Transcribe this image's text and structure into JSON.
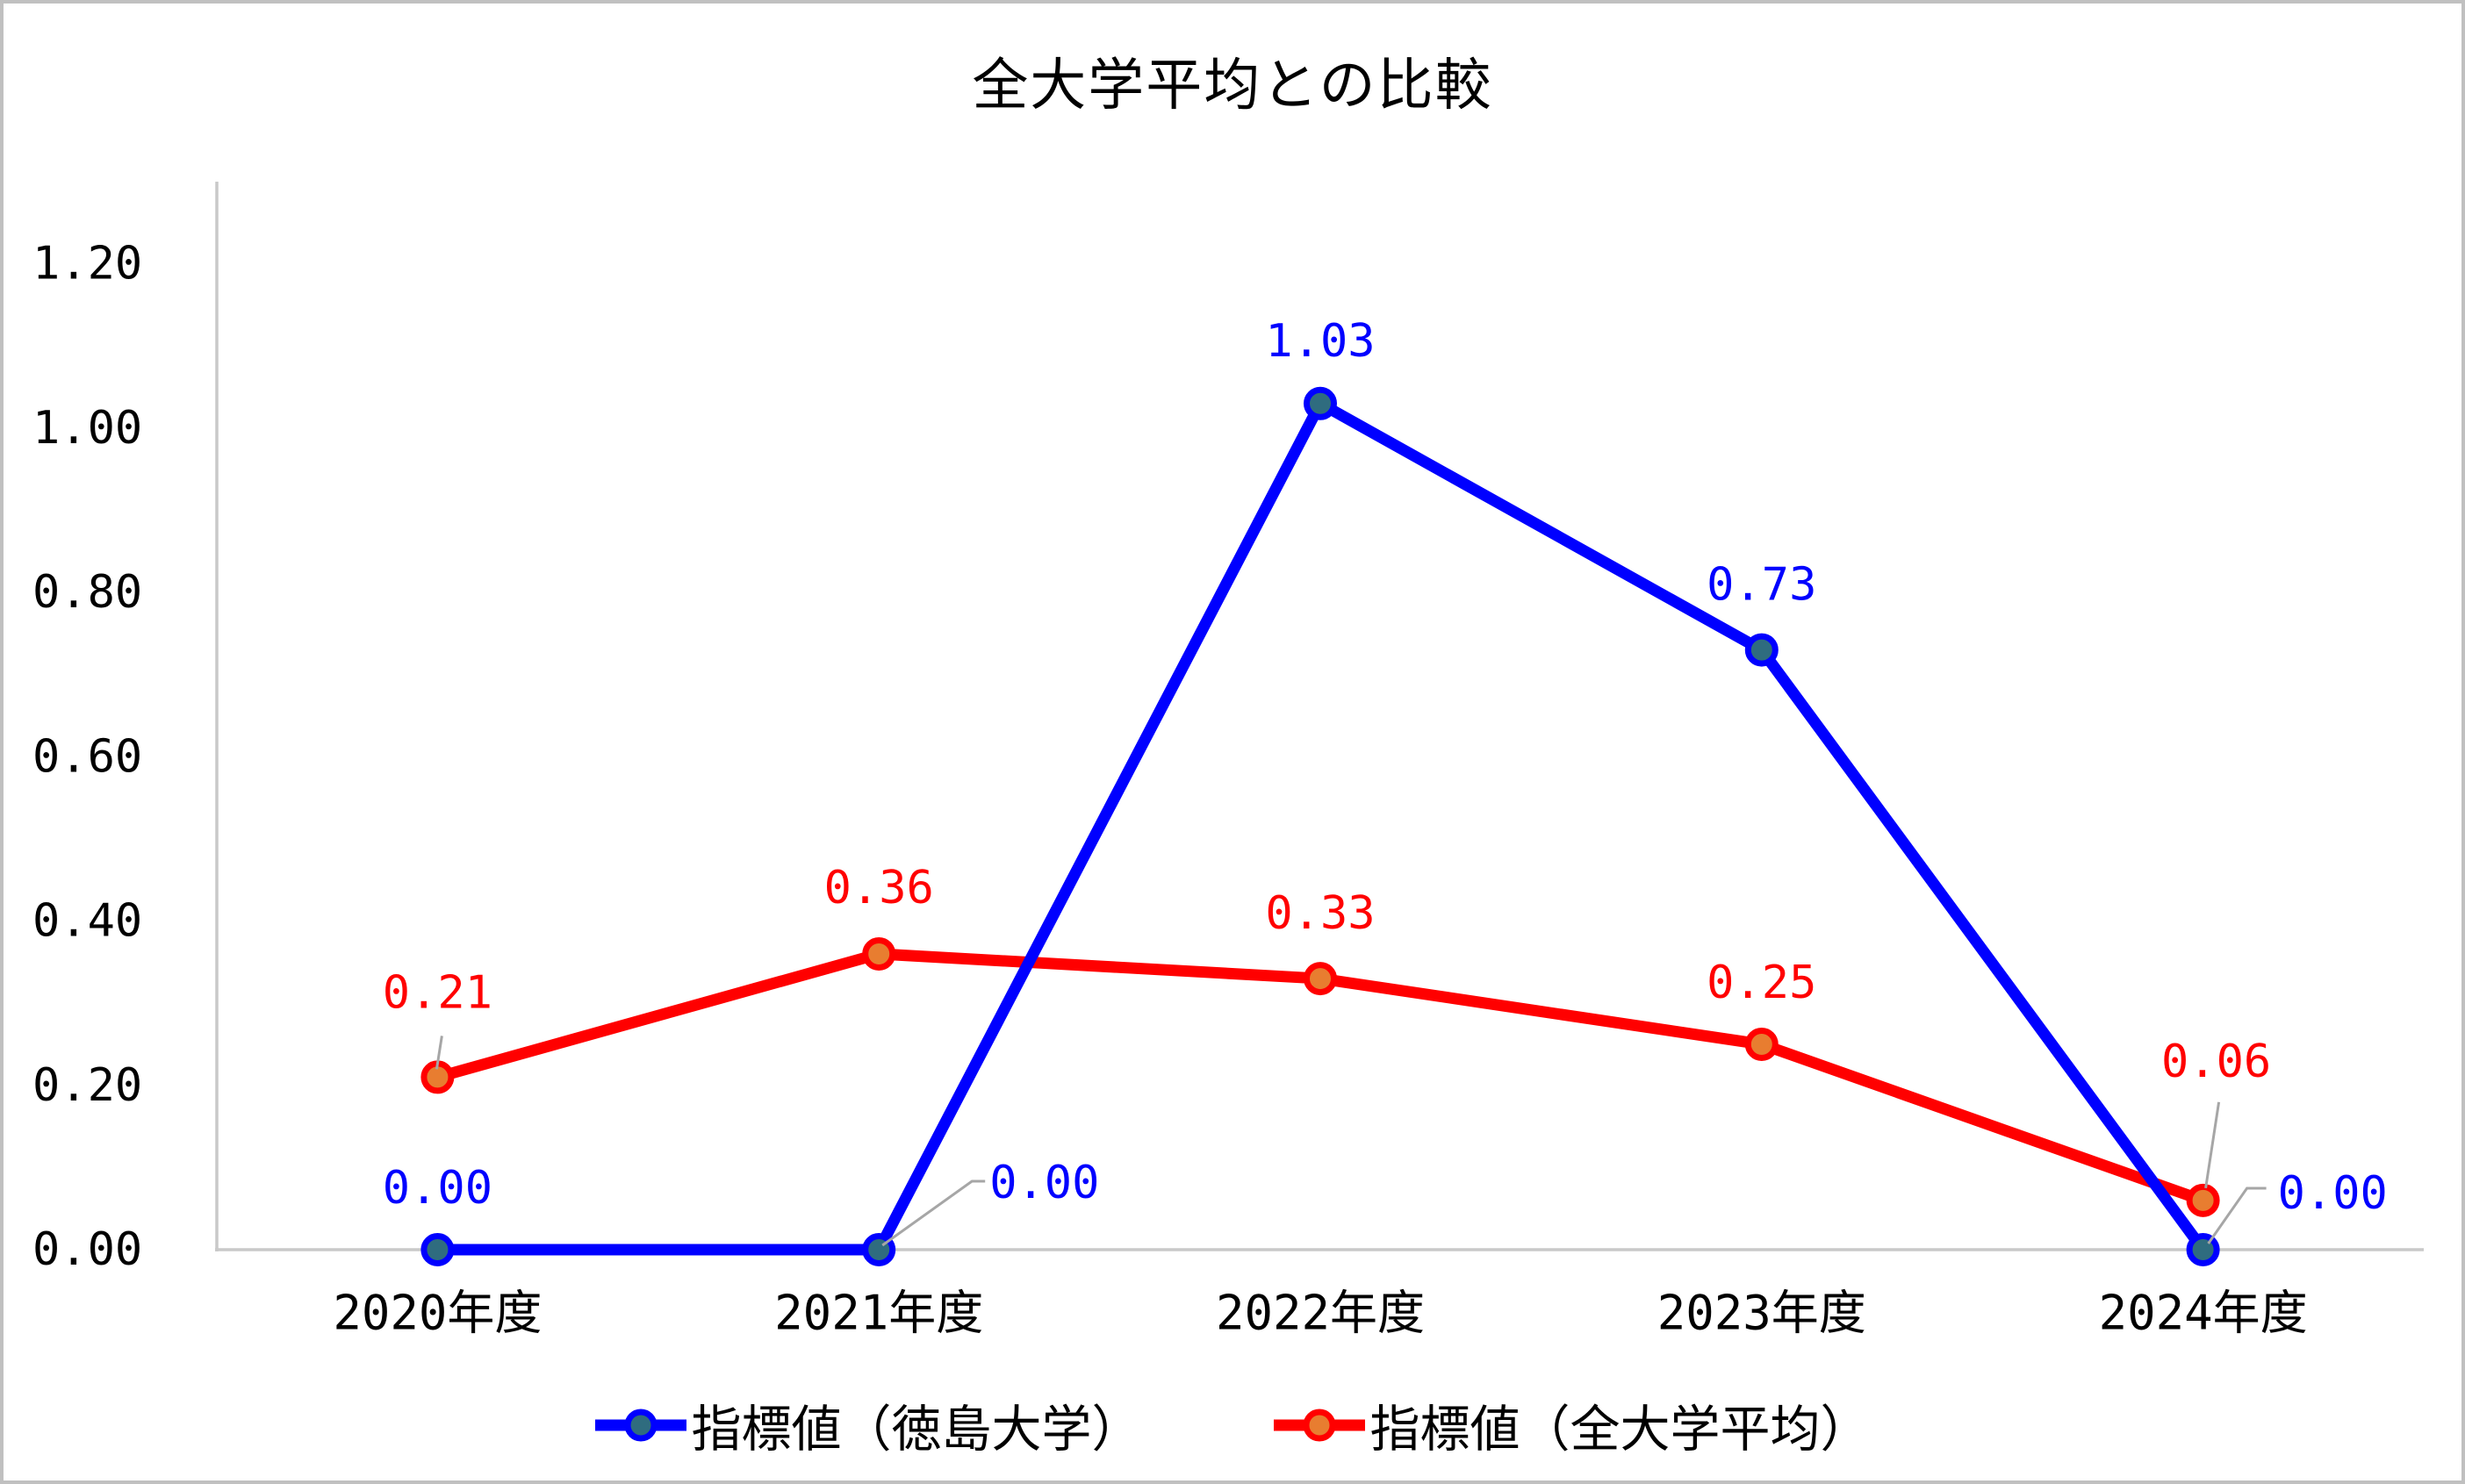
{
  "colors": {
    "tokushima_line": "#0000FF",
    "tokushima_marker_fill": "#2F6C7F",
    "average_line": "#FF0000",
    "average_marker_fill": "#E87D30",
    "axis_line": "#C9C9C9",
    "leader_line": "#A6A6A6",
    "frame_border": "#C0C0C0",
    "text": "#000000"
  },
  "chart_data": {
    "type": "line",
    "title": "全大学平均との比較",
    "categories": [
      "2020年度",
      "2021年度",
      "2022年度",
      "2023年度",
      "2024年度"
    ],
    "series": [
      {
        "name": "指標値（徳島大学）",
        "values": [
          0.0,
          0.0,
          1.03,
          0.73,
          0.0
        ],
        "labels": [
          "0.00",
          "0.00",
          "1.03",
          "0.73",
          "0.00"
        ],
        "line_color": "#0000FF",
        "marker_fill": "#2F6C7F"
      },
      {
        "name": "指標値（全大学平均）",
        "values": [
          0.21,
          0.36,
          0.33,
          0.25,
          0.06
        ],
        "labels": [
          "0.21",
          "0.36",
          "0.33",
          "0.25",
          "0.06"
        ],
        "line_color": "#FF0000",
        "marker_fill": "#E87D30"
      }
    ],
    "ylim": [
      0,
      1.3
    ],
    "yticks": [
      {
        "value": 0.0,
        "label": "0.00"
      },
      {
        "value": 0.2,
        "label": "0.20"
      },
      {
        "value": 0.4,
        "label": "0.40"
      },
      {
        "value": 0.6,
        "label": "0.60"
      },
      {
        "value": 0.8,
        "label": "0.80"
      },
      {
        "value": 1.0,
        "label": "1.00"
      },
      {
        "value": 1.2,
        "label": "1.20"
      }
    ],
    "grid": false,
    "legend_position": "bottom"
  }
}
